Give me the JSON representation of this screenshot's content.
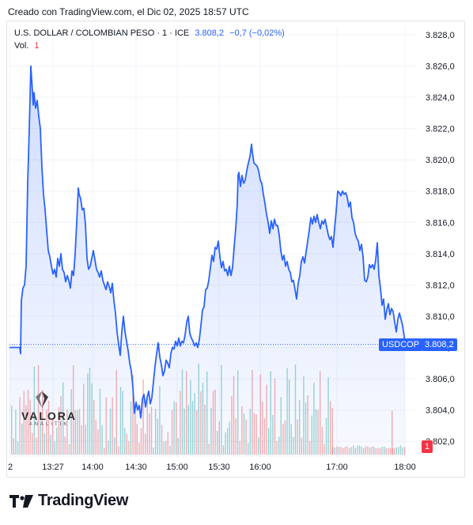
{
  "caption": "Creado con TradingView.com, el Dic 02, 2025 18:57 UTC",
  "legend": {
    "symbol": "U.S. DOLLAR / COLOMBIAN PESO · 1 · ICE",
    "price": "3.808,2",
    "change": "−0,7 (−0,02%)",
    "volume_label": "Vol.",
    "volume_value": "1"
  },
  "price_tag": {
    "symbol": "USDCOP",
    "price": "3.808,2"
  },
  "volume_tag": "1",
  "watermark": {
    "name": "VALORA",
    "sub": "ANALITIK"
  },
  "footer": {
    "logo": "17",
    "name": "TradingView"
  },
  "colors": {
    "line": "#2962ff",
    "fill": "#2962ff",
    "vol_up": "#26a69a",
    "vol_down": "#ef5350",
    "grid": "#f0f3fa"
  },
  "chart_data": {
    "type": "area",
    "ylim": [
      3801.0,
      3828.5
    ],
    "y_ticks": [
      3802,
      3804,
      3806,
      3808,
      3810,
      3812,
      3814,
      3816,
      3818,
      3820,
      3822,
      3824,
      3826,
      3828
    ],
    "y_tick_labels": [
      "3.802,0",
      "3.804,0",
      "3.806,0",
      "3.808,0",
      "3.810,0",
      "3.812,0",
      "3.814,0",
      "3.816,0",
      "3.818,0",
      "3.820,0",
      "3.822,0",
      "3.824,0",
      "3.826,0",
      "3.828,0"
    ],
    "x_range": [
      0,
      500
    ],
    "x_ticks": [
      {
        "x": 0,
        "label": "2"
      },
      {
        "x": 55,
        "label": "13:27"
      },
      {
        "x": 105,
        "label": "14:00"
      },
      {
        "x": 160,
        "label": "14:30"
      },
      {
        "x": 212,
        "label": "15:00"
      },
      {
        "x": 265,
        "label": "15:30"
      },
      {
        "x": 317,
        "label": "16:00"
      },
      {
        "x": 414,
        "label": "17:00"
      },
      {
        "x": 500,
        "label": "18:00"
      }
    ],
    "last_price": 3808.2,
    "points": [
      [
        0,
        3808.0
      ],
      [
        13,
        3808.0
      ],
      [
        14,
        3807.6
      ],
      [
        15,
        3811.0
      ],
      [
        17,
        3811.8
      ],
      [
        19,
        3812.0
      ],
      [
        21,
        3813.2
      ],
      [
        23,
        3818.5
      ],
      [
        25,
        3822.0
      ],
      [
        27,
        3826.0
      ],
      [
        28,
        3825.2
      ],
      [
        30,
        3823.5
      ],
      [
        31,
        3824.3
      ],
      [
        33,
        3823.3
      ],
      [
        35,
        3823.8
      ],
      [
        37,
        3822.8
      ],
      [
        39,
        3822.0
      ],
      [
        41,
        3819.5
      ],
      [
        43,
        3817.8
      ],
      [
        45,
        3816.8
      ],
      [
        47,
        3815.5
      ],
      [
        49,
        3814.2
      ],
      [
        51,
        3813.8
      ],
      [
        53,
        3813.2
      ],
      [
        55,
        3812.7
      ],
      [
        57,
        3813.0
      ],
      [
        59,
        3812.5
      ],
      [
        61,
        3813.7
      ],
      [
        63,
        3813.2
      ],
      [
        65,
        3814.0
      ],
      [
        67,
        3813.0
      ],
      [
        69,
        3812.8
      ],
      [
        71,
        3812.2
      ],
      [
        73,
        3812.6
      ],
      [
        75,
        3812.3
      ],
      [
        77,
        3811.8
      ],
      [
        79,
        3812.9
      ],
      [
        81,
        3812.6
      ],
      [
        83,
        3814.0
      ],
      [
        85,
        3816.0
      ],
      [
        87,
        3818.2
      ],
      [
        88,
        3817.8
      ],
      [
        90,
        3817.5
      ],
      [
        92,
        3816.8
      ],
      [
        94,
        3816.9
      ],
      [
        96,
        3815.9
      ],
      [
        98,
        3813.7
      ],
      [
        100,
        3813.0
      ],
      [
        102,
        3813.2
      ],
      [
        104,
        3813.7
      ],
      [
        106,
        3814.2
      ],
      [
        108,
        3813.6
      ],
      [
        110,
        3813.0
      ],
      [
        112,
        3812.8
      ],
      [
        114,
        3812.5
      ],
      [
        116,
        3812.9
      ],
      [
        118,
        3812.3
      ],
      [
        120,
        3812.0
      ],
      [
        122,
        3811.7
      ],
      [
        124,
        3812.2
      ],
      [
        126,
        3811.9
      ],
      [
        128,
        3811.5
      ],
      [
        130,
        3812.1
      ],
      [
        132,
        3811.0
      ],
      [
        134,
        3810.2
      ],
      [
        136,
        3809.0
      ],
      [
        138,
        3808.2
      ],
      [
        140,
        3807.5
      ],
      [
        142,
        3809.0
      ],
      [
        144,
        3810.0
      ],
      [
        146,
        3809.0
      ],
      [
        148,
        3808.4
      ],
      [
        150,
        3807.8
      ],
      [
        152,
        3807.0
      ],
      [
        154,
        3806.5
      ],
      [
        156,
        3805.5
      ],
      [
        158,
        3803.8
      ],
      [
        160,
        3804.5
      ],
      [
        162,
        3804.0
      ],
      [
        164,
        3804.3
      ],
      [
        166,
        3803.5
      ],
      [
        168,
        3804.7
      ],
      [
        170,
        3805.0
      ],
      [
        172,
        3804.2
      ],
      [
        174,
        3804.8
      ],
      [
        176,
        3805.2
      ],
      [
        178,
        3804.4
      ],
      [
        180,
        3804.8
      ],
      [
        182,
        3805.8
      ],
      [
        184,
        3806.8
      ],
      [
        186,
        3807.6
      ],
      [
        188,
        3808.3
      ],
      [
        190,
        3807.4
      ],
      [
        192,
        3806.9
      ],
      [
        194,
        3806.2
      ],
      [
        196,
        3806.5
      ],
      [
        198,
        3807.2
      ],
      [
        200,
        3807.0
      ],
      [
        202,
        3806.7
      ],
      [
        204,
        3807.6
      ],
      [
        206,
        3808.0
      ],
      [
        208,
        3807.9
      ],
      [
        210,
        3808.4
      ],
      [
        212,
        3808.1
      ],
      [
        214,
        3808.6
      ],
      [
        216,
        3808.1
      ],
      [
        218,
        3808.4
      ],
      [
        220,
        3808.3
      ],
      [
        222,
        3808.8
      ],
      [
        224,
        3809.6
      ],
      [
        226,
        3810.0
      ],
      [
        228,
        3808.9
      ],
      [
        230,
        3808.6
      ],
      [
        232,
        3808.4
      ],
      [
        234,
        3808.1
      ],
      [
        236,
        3808.3
      ],
      [
        238,
        3808.0
      ],
      [
        240,
        3808.5
      ],
      [
        242,
        3809.4
      ],
      [
        244,
        3810.4
      ],
      [
        246,
        3810.6
      ],
      [
        248,
        3811.7
      ],
      [
        250,
        3811.8
      ],
      [
        252,
        3812.3
      ],
      [
        254,
        3813.1
      ],
      [
        256,
        3813.9
      ],
      [
        258,
        3813.5
      ],
      [
        260,
        3814.4
      ],
      [
        262,
        3814.3
      ],
      [
        264,
        3814.8
      ],
      [
        266,
        3813.8
      ],
      [
        268,
        3813.1
      ],
      [
        270,
        3813.5
      ],
      [
        272,
        3812.9
      ],
      [
        274,
        3813.0
      ],
      [
        276,
        3812.6
      ],
      [
        278,
        3813.2
      ],
      [
        280,
        3812.6
      ],
      [
        282,
        3813.1
      ],
      [
        284,
        3814.4
      ],
      [
        286,
        3815.6
      ],
      [
        288,
        3817.2
      ],
      [
        289,
        3819.0
      ],
      [
        290,
        3819.2
      ],
      [
        292,
        3818.3
      ],
      [
        294,
        3819.0
      ],
      [
        296,
        3818.5
      ],
      [
        298,
        3818.7
      ],
      [
        300,
        3819.3
      ],
      [
        302,
        3819.8
      ],
      [
        304,
        3820.2
      ],
      [
        306,
        3821.0
      ],
      [
        307,
        3820.5
      ],
      [
        309,
        3819.8
      ],
      [
        311,
        3819.7
      ],
      [
        313,
        3819.6
      ],
      [
        315,
        3819.3
      ],
      [
        317,
        3818.7
      ],
      [
        319,
        3818.5
      ],
      [
        321,
        3817.8
      ],
      [
        323,
        3817.2
      ],
      [
        325,
        3816.5
      ],
      [
        327,
        3816.0
      ],
      [
        329,
        3815.3
      ],
      [
        331,
        3816.1
      ],
      [
        333,
        3815.6
      ],
      [
        335,
        3816.2
      ],
      [
        337,
        3815.8
      ],
      [
        339,
        3815.8
      ],
      [
        341,
        3815.2
      ],
      [
        343,
        3814.2
      ],
      [
        345,
        3813.6
      ],
      [
        347,
        3813.9
      ],
      [
        349,
        3813.2
      ],
      [
        351,
        3813.5
      ],
      [
        353,
        3813.0
      ],
      [
        355,
        3812.8
      ],
      [
        357,
        3812.2
      ],
      [
        359,
        3812.3
      ],
      [
        361,
        3811.7
      ],
      [
        363,
        3811.1
      ],
      [
        365,
        3812.1
      ],
      [
        367,
        3812.6
      ],
      [
        369,
        3813.5
      ],
      [
        371,
        3813.8
      ],
      [
        373,
        3813.4
      ],
      [
        375,
        3814.1
      ],
      [
        377,
        3814.8
      ],
      [
        379,
        3815.5
      ],
      [
        381,
        3816.3
      ],
      [
        383,
        3815.9
      ],
      [
        385,
        3816.4
      ],
      [
        387,
        3816.0
      ],
      [
        389,
        3816.5
      ],
      [
        391,
        3816.0
      ],
      [
        393,
        3815.6
      ],
      [
        395,
        3816.1
      ],
      [
        397,
        3815.9
      ],
      [
        399,
        3816.2
      ],
      [
        401,
        3815.7
      ],
      [
        403,
        3815.2
      ],
      [
        405,
        3814.9
      ],
      [
        407,
        3815.1
      ],
      [
        409,
        3814.4
      ],
      [
        411,
        3815.6
      ],
      [
        413,
        3816.7
      ],
      [
        415,
        3818.0
      ],
      [
        417,
        3817.9
      ],
      [
        419,
        3817.7
      ],
      [
        421,
        3818.0
      ],
      [
        423,
        3817.8
      ],
      [
        425,
        3817.9
      ],
      [
        427,
        3817.6
      ],
      [
        429,
        3817.0
      ],
      [
        431,
        3817.3
      ],
      [
        433,
        3816.3
      ],
      [
        435,
        3816.0
      ],
      [
        437,
        3815.3
      ],
      [
        439,
        3815.0
      ],
      [
        441,
        3814.8
      ],
      [
        443,
        3814.2
      ],
      [
        445,
        3814.6
      ],
      [
        447,
        3813.8
      ],
      [
        449,
        3812.3
      ],
      [
        451,
        3812.2
      ],
      [
        453,
        3812.5
      ],
      [
        455,
        3813.3
      ],
      [
        457,
        3813.1
      ],
      [
        459,
        3813.3
      ],
      [
        461,
        3813.0
      ],
      [
        463,
        3813.6
      ],
      [
        465,
        3814.7
      ],
      [
        467,
        3812.6
      ],
      [
        469,
        3811.8
      ],
      [
        471,
        3810.7
      ],
      [
        473,
        3811.1
      ],
      [
        475,
        3809.8
      ],
      [
        477,
        3810.4
      ],
      [
        479,
        3810.8
      ],
      [
        481,
        3810.1
      ],
      [
        483,
        3810.5
      ],
      [
        485,
        3810.3
      ],
      [
        487,
        3809.6
      ],
      [
        489,
        3809.0
      ],
      [
        491,
        3809.8
      ],
      [
        493,
        3810.2
      ],
      [
        495,
        3809.8
      ],
      [
        497,
        3809.4
      ],
      [
        499,
        3808.7
      ],
      [
        500,
        3808.2
      ]
    ]
  }
}
